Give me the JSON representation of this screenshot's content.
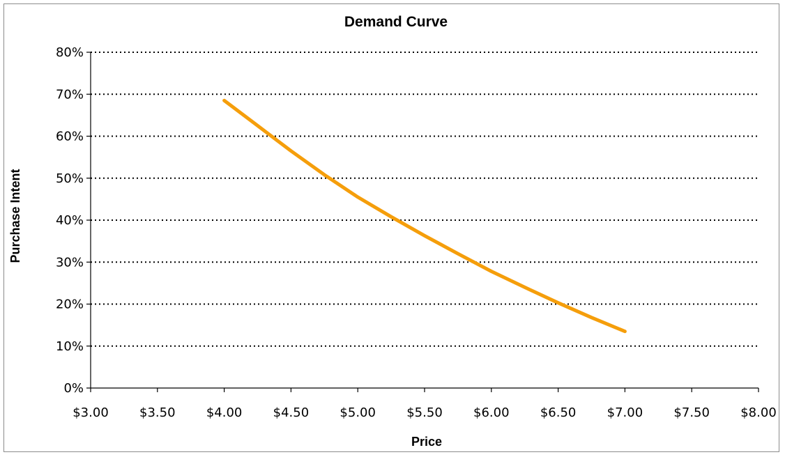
{
  "chart_data": {
    "type": "line",
    "title": "Demand Curve",
    "xlabel": "Price",
    "ylabel": "Purchase Intent",
    "xlim": [
      3.0,
      8.0
    ],
    "ylim": [
      0,
      0.8
    ],
    "x_ticks": [
      3.0,
      3.5,
      4.0,
      4.5,
      5.0,
      5.5,
      6.0,
      6.5,
      7.0,
      7.5,
      8.0
    ],
    "x_tick_labels": [
      "$3.00",
      "$3.50",
      "$4.00",
      "$4.50",
      "$5.00",
      "$5.50",
      "$6.00",
      "$6.50",
      "$7.00",
      "$7.50",
      "$8.00"
    ],
    "y_ticks": [
      0,
      0.1,
      0.2,
      0.3,
      0.4,
      0.5,
      0.6,
      0.7,
      0.8
    ],
    "y_tick_labels": [
      "0%",
      "10%",
      "20%",
      "30%",
      "40%",
      "50%",
      "60%",
      "70%",
      "80%"
    ],
    "grid": true,
    "legend": "none",
    "series": [
      {
        "color": "#F59E0B",
        "x": [
          4.0,
          4.25,
          4.5,
          4.75,
          5.0,
          5.25,
          5.5,
          5.75,
          6.0,
          6.25,
          6.5,
          6.75,
          7.0
        ],
        "y": [
          0.685,
          0.625,
          0.565,
          0.508,
          0.455,
          0.408,
          0.363,
          0.32,
          0.278,
          0.24,
          0.203,
          0.168,
          0.135
        ]
      }
    ]
  }
}
